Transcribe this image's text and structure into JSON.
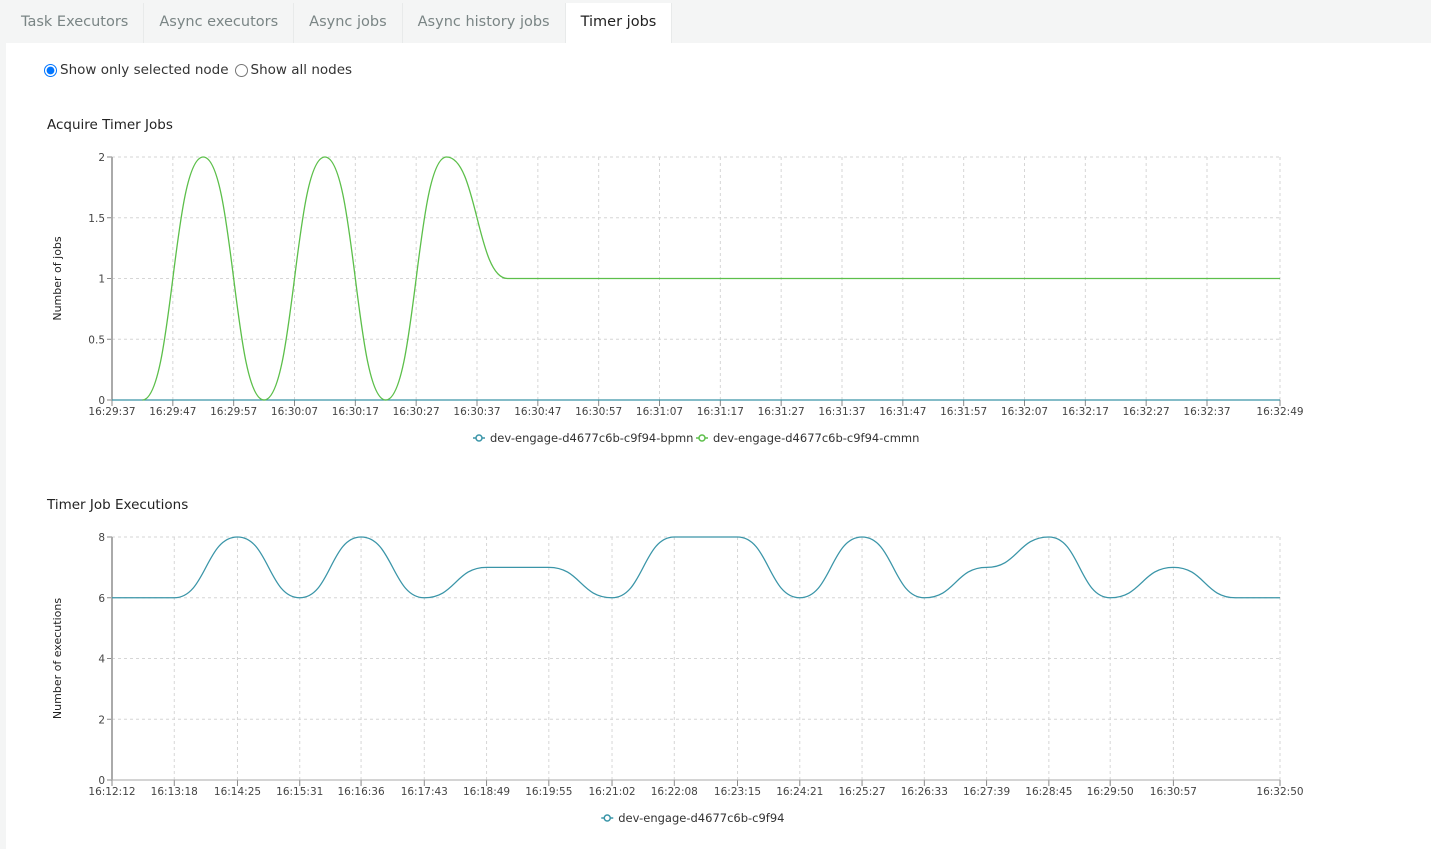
{
  "tabs": [
    {
      "label": "Task Executors"
    },
    {
      "label": "Async executors"
    },
    {
      "label": "Async jobs"
    },
    {
      "label": "Async history jobs"
    },
    {
      "label": "Timer jobs",
      "active": true
    }
  ],
  "filter": {
    "options": [
      {
        "label": "Show only selected node",
        "checked": true
      },
      {
        "label": "Show all nodes",
        "checked": false
      }
    ]
  },
  "chart_data": [
    {
      "type": "line",
      "title": "Acquire Timer Jobs",
      "ylabel": "Number of jobs",
      "xlabel": "",
      "ylim": [
        0,
        2
      ],
      "yticks": [
        "0",
        "0.5",
        "1",
        "1.5",
        "2"
      ],
      "xrange": [
        "16:29:37",
        "16:32:49"
      ],
      "xticks": [
        "16:29:37",
        "16:29:47",
        "16:29:57",
        "16:30:07",
        "16:30:17",
        "16:30:27",
        "16:30:37",
        "16:30:47",
        "16:30:57",
        "16:31:07",
        "16:31:17",
        "16:31:27",
        "16:31:37",
        "16:31:47",
        "16:31:57",
        "16:32:07",
        "16:32:17",
        "16:32:27",
        "16:32:37",
        "16:32:49"
      ],
      "grid": true,
      "legend": "bottom",
      "series": [
        {
          "name": "dev-engage-d4677c6b-c9f94-bpmn",
          "color": "#3a95a8",
          "x": [
            "16:29:37",
            "16:32:49"
          ],
          "y": [
            0,
            0
          ]
        },
        {
          "name": "dev-engage-d4677c6b-c9f94-cmmn",
          "color": "#5cbf4a",
          "x": [
            "16:29:42",
            "16:29:52",
            "16:30:02",
            "16:30:12",
            "16:30:22",
            "16:30:32",
            "16:30:42",
            "16:32:49"
          ],
          "y": [
            0,
            2,
            0,
            2,
            0,
            2,
            1,
            1
          ]
        }
      ]
    },
    {
      "type": "line",
      "title": "Timer Job Executions",
      "ylabel": "Number of executions",
      "xlabel": "",
      "ylim": [
        0,
        8
      ],
      "yticks": [
        "0",
        "2",
        "4",
        "6",
        "8"
      ],
      "xrange": [
        "16:12:12",
        "16:32:50"
      ],
      "xticks": [
        "16:12:12",
        "16:13:18",
        "16:14:25",
        "16:15:31",
        "16:16:36",
        "16:17:43",
        "16:18:49",
        "16:19:55",
        "16:21:02",
        "16:22:08",
        "16:23:15",
        "16:24:21",
        "16:25:27",
        "16:26:33",
        "16:27:39",
        "16:28:45",
        "16:29:50",
        "16:30:57",
        "16:32:50"
      ],
      "grid": true,
      "legend": "bottom",
      "series": [
        {
          "name": "dev-engage-d4677c6b-c9f94",
          "color": "#3a95a8",
          "x": [
            "16:12:12",
            "16:13:18",
            "16:14:25",
            "16:15:31",
            "16:16:36",
            "16:17:43",
            "16:18:49",
            "16:19:55",
            "16:21:02",
            "16:22:08",
            "16:23:15",
            "16:24:21",
            "16:25:27",
            "16:26:33",
            "16:27:39",
            "16:28:45",
            "16:29:50",
            "16:30:57",
            "16:32:03",
            "16:32:50"
          ],
          "y": [
            6,
            6,
            8,
            6,
            8,
            6,
            7,
            7,
            6,
            8,
            8,
            6,
            8,
            6,
            7,
            8,
            6,
            7,
            6,
            6
          ]
        }
      ]
    }
  ]
}
